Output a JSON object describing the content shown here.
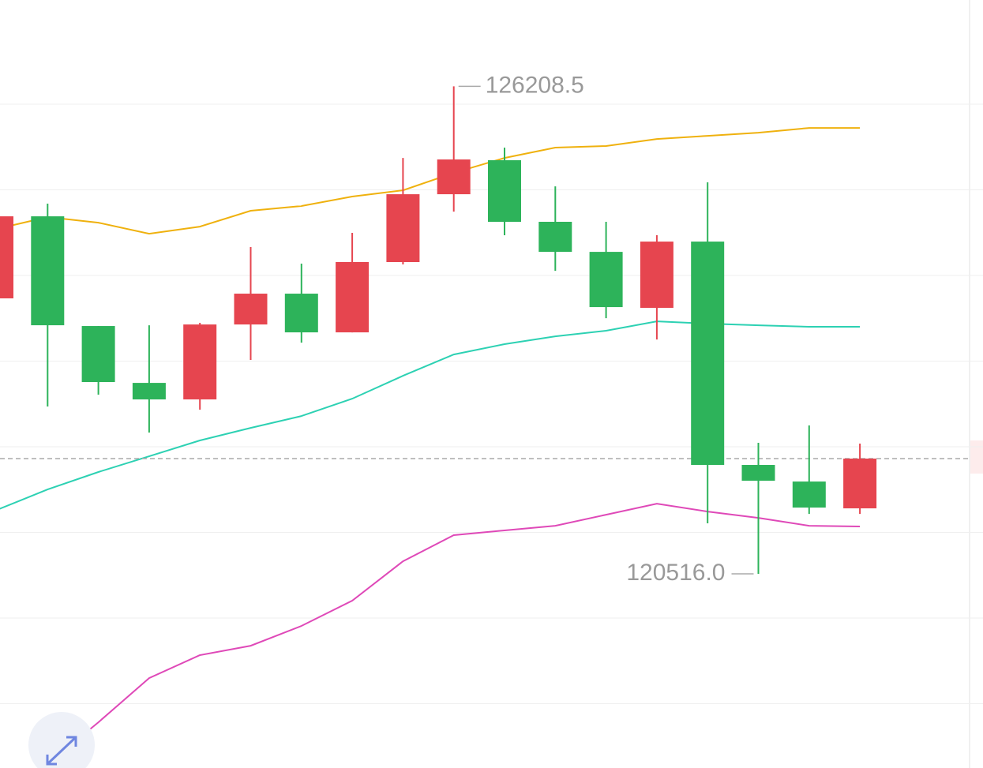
{
  "chart_data": {
    "type": "candlestick",
    "open": [
      123733,
      124691,
      123410,
      122746,
      122553,
      123428,
      123788,
      123336,
      124157,
      124949,
      125346,
      124627,
      124276,
      123622,
      124396,
      121788,
      121594,
      121281
    ],
    "high": [
      124691,
      124839,
      123410,
      123419,
      123447,
      124332,
      124138,
      124498,
      125373,
      126208.5,
      125493,
      125041,
      124627,
      124470,
      125088,
      122046,
      122249,
      122037
    ],
    "low": [
      123733,
      122470,
      122608,
      122166,
      122433,
      123014,
      123216,
      123336,
      124129,
      124746,
      124470,
      124055,
      123502,
      123253,
      121106,
      120516.0,
      121216,
      121216
    ],
    "close": [
      124691,
      123419,
      122756,
      122553,
      123428,
      123788,
      123336,
      124157,
      124949,
      125355,
      124627,
      124276,
      123631,
      124396,
      121788,
      121603,
      121290,
      121862
    ],
    "up_color": "#e6454f",
    "down_color": "#2db35a",
    "overlays": [
      {
        "color": "#efb10e",
        "values": [
          124544,
          124682,
          124617,
          124488,
          124571,
          124756,
          124811,
          124922,
          124995,
          125198,
          125373,
          125493,
          125512,
          125594,
          125631,
          125668,
          125723,
          125723
        ]
      },
      {
        "color": "#2dd1b3",
        "values": [
          121262,
          121502,
          121705,
          121889,
          122074,
          122221,
          122359,
          122562,
          122829,
          123078,
          123198,
          123290,
          123355,
          123465,
          123438,
          123419,
          123401,
          123401
        ]
      },
      {
        "color": "#df49b8",
        "values": [
          null,
          118295,
          118783,
          119299,
          119567,
          119677,
          119908,
          120203,
          120663,
          120968,
          121023,
          121078,
          121207,
          121336,
          121244,
          121170,
          121078,
          121069
        ]
      }
    ],
    "annotations": [
      {
        "value": 126208.5,
        "label": "126208.5"
      },
      {
        "value": 120516.0,
        "label": "120516.0"
      }
    ],
    "ylim": [
      118249,
      127217
    ],
    "yticks": [
      119000,
      120000,
      121000,
      122000,
      123000,
      124000,
      125000,
      126000
    ],
    "grid": true
  }
}
